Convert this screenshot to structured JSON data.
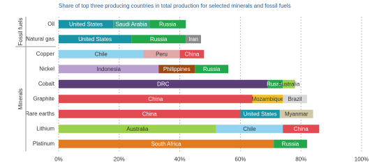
{
  "chart_data": {
    "type": "stacked-bar-horizontal",
    "title": "Share of top three producing countries in total production for selected minerals and fossil fuels",
    "groups": [
      {
        "name": "Fossil fuels",
        "rows": [
          0,
          1
        ]
      },
      {
        "name": "Minerals",
        "rows": [
          2,
          3,
          4,
          5,
          6,
          7,
          8
        ]
      }
    ],
    "rows": [
      {
        "category": "Oil",
        "segments": [
          {
            "name": "United States",
            "value": 18,
            "color": "#1a93a6"
          },
          {
            "name": "Saudi Arabia",
            "value": 12,
            "color": "#3aa58f"
          },
          {
            "name": "Russia",
            "value": 12,
            "color": "#22a84a"
          }
        ]
      },
      {
        "category": "Natural gas",
        "segments": [
          {
            "name": "United States",
            "value": 24,
            "color": "#1a93a6"
          },
          {
            "name": "Russia",
            "value": 18,
            "color": "#22a84a"
          },
          {
            "name": "Iran",
            "value": 5,
            "color": "#8a8a8a"
          }
        ]
      },
      {
        "category": "Copper",
        "segments": [
          {
            "name": "Chile",
            "value": 28,
            "color": "#8fd3ee"
          },
          {
            "name": "Peru",
            "value": 12,
            "color": "#e0a8a8"
          },
          {
            "name": "China",
            "value": 8,
            "color": "#e04a50"
          }
        ]
      },
      {
        "category": "Nickel",
        "segments": [
          {
            "name": "Indonesia",
            "value": 33,
            "color": "#b9a0d0"
          },
          {
            "name": "Philippines",
            "value": 12,
            "color": "#9a4a10"
          },
          {
            "name": "Russia",
            "value": 11,
            "color": "#22a84a"
          }
        ]
      },
      {
        "category": "Cobalt",
        "segments": [
          {
            "name": "DRC",
            "value": 69,
            "color": "#5a3f78"
          },
          {
            "name": "Russia",
            "value": 5,
            "color": "#22a84a"
          },
          {
            "name": "Australia",
            "value": 4,
            "color": "#9ad04e"
          }
        ]
      },
      {
        "category": "Graphite",
        "segments": [
          {
            "name": "China",
            "value": 64,
            "color": "#e04a50"
          },
          {
            "name": "Mozambique",
            "value": 10,
            "color": "#f0c020"
          },
          {
            "name": "Brazil",
            "value": 8,
            "color": "#d9d9d9"
          }
        ]
      },
      {
        "category": "Rare earths",
        "segments": [
          {
            "name": "China",
            "value": 60,
            "color": "#e04a50"
          },
          {
            "name": "United States",
            "value": 13,
            "color": "#1a93a6"
          },
          {
            "name": "Myanmar",
            "value": 11,
            "color": "#d2c8a8"
          }
        ]
      },
      {
        "category": "Lithium",
        "segments": [
          {
            "name": "Australia",
            "value": 52,
            "color": "#9ad04e"
          },
          {
            "name": "Chile",
            "value": 22,
            "color": "#8fd3ee"
          },
          {
            "name": "China",
            "value": 12,
            "color": "#e04a50"
          }
        ]
      },
      {
        "category": "Platinum",
        "segments": [
          {
            "name": "South Africa",
            "value": 71,
            "color": "#e07b20"
          },
          {
            "name": "Russia",
            "value": 11,
            "color": "#22a84a"
          }
        ]
      }
    ],
    "xlim": [
      0,
      100
    ],
    "xticks": [
      {
        "value": 0,
        "label": "0%"
      },
      {
        "value": 20,
        "label": "20%"
      },
      {
        "value": 40,
        "label": "40%"
      },
      {
        "value": 60,
        "label": "60%"
      },
      {
        "value": 80,
        "label": "80%"
      },
      {
        "value": 100,
        "label": "100%"
      }
    ],
    "grid": true
  }
}
